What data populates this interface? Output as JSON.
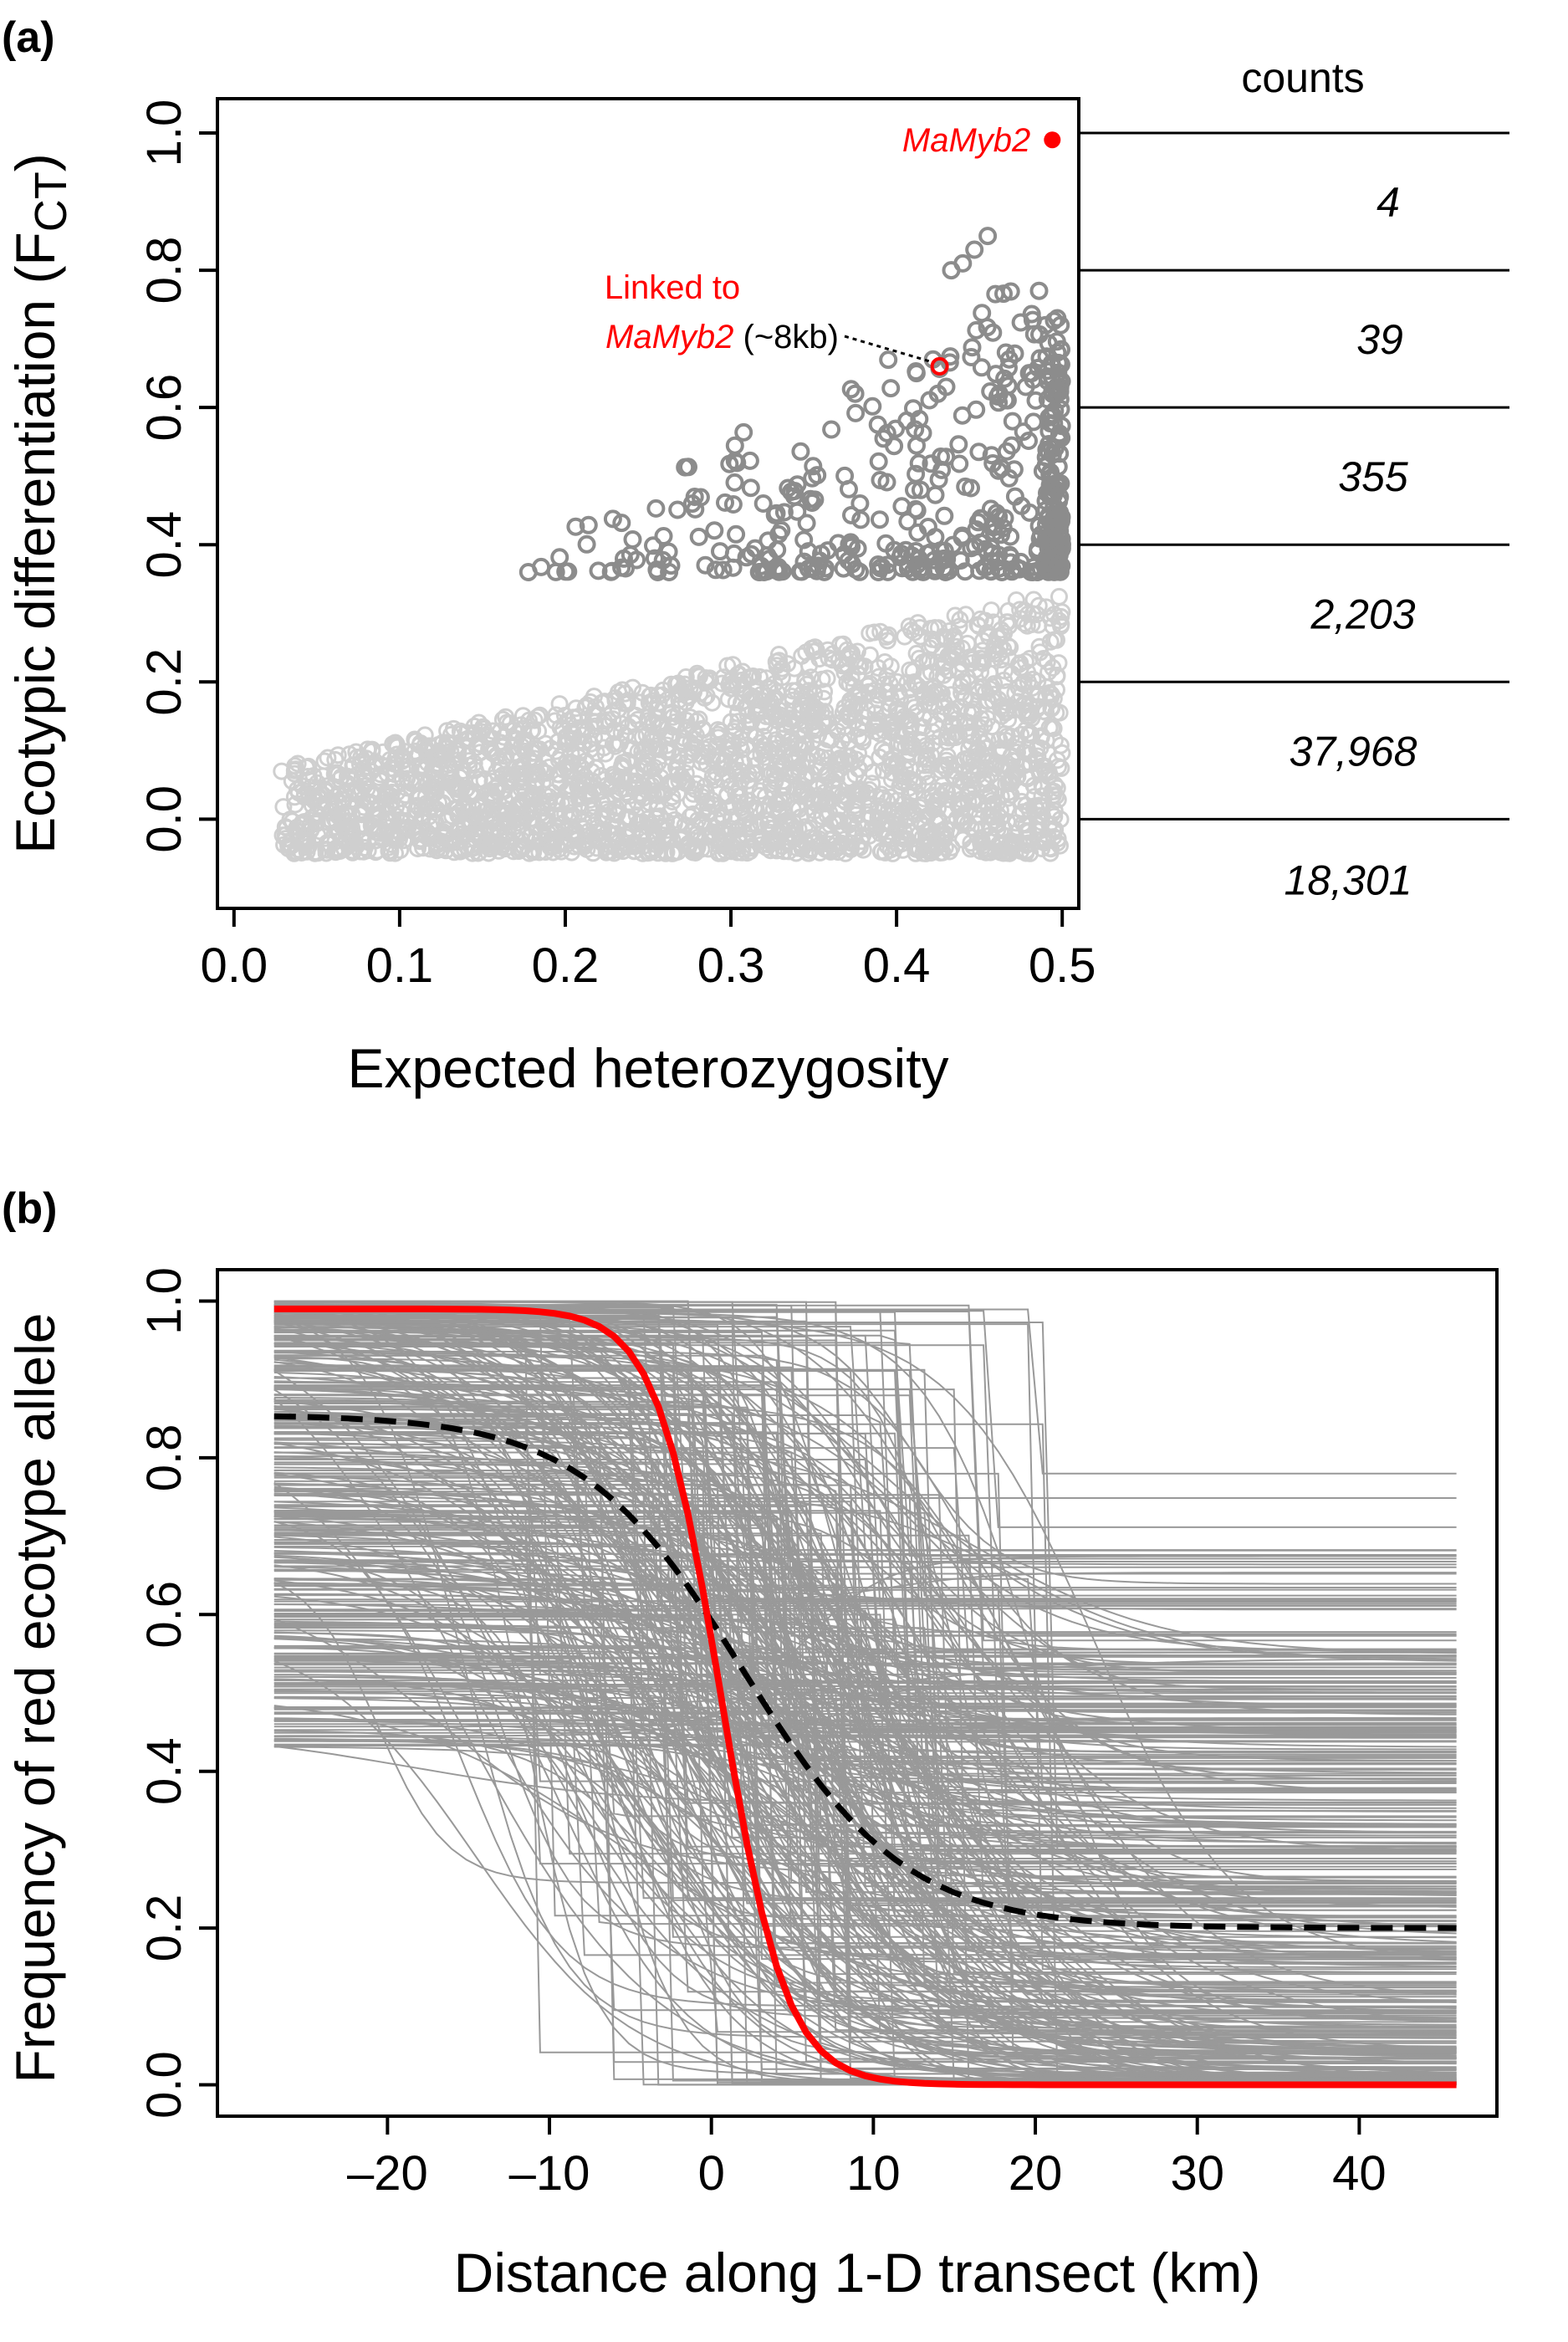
{
  "chart_data": [
    {
      "panel_label": "(a)",
      "type": "scatter",
      "xlabel": "Expected heterozygosity",
      "ylabel": "Ecotypic differentiation (F",
      "ylabel_subscript": "CT",
      "ylabel_close": ")",
      "xlim": [
        -0.01,
        0.51
      ],
      "ylim": [
        -0.13,
        1.05
      ],
      "xticks": [
        0.0,
        0.1,
        0.2,
        0.3,
        0.4,
        0.5
      ],
      "xtick_labels": [
        "0.0",
        "0.1",
        "0.2",
        "0.3",
        "0.4",
        "0.5"
      ],
      "yticks": [
        0.0,
        0.2,
        0.4,
        0.6,
        0.8,
        1.0
      ],
      "ytick_labels": [
        "0.0",
        "0.2",
        "0.4",
        "0.6",
        "0.8",
        "1.0"
      ],
      "grid": false,
      "colors": {
        "light_points": "#cfcfcf",
        "dark_points": "#8c8c8c",
        "highlight": "#ff0000"
      },
      "outlier_threshold": 0.35,
      "highlight_point": {
        "label": "MaMyb2",
        "x": 0.494,
        "y": 0.99
      },
      "linked_point": {
        "x": 0.426,
        "y": 0.66,
        "label_line1": "Linked to",
        "label_gene": "MaMyb2",
        "label_suffix": " (~8kb)"
      },
      "outlier_points": [
        [
          0.455,
          0.85
        ],
        [
          0.447,
          0.83
        ],
        [
          0.44,
          0.81
        ],
        [
          0.433,
          0.8
        ],
        [
          0.462,
          0.62
        ],
        [
          0.466,
          0.68
        ],
        [
          0.468,
          0.67
        ],
        [
          0.486,
          0.77
        ],
        [
          0.49,
          0.72
        ],
        [
          0.497,
          0.73
        ],
        [
          0.499,
          0.72
        ],
        [
          0.412,
          0.65
        ],
        [
          0.425,
          0.62
        ],
        [
          0.43,
          0.63
        ],
        [
          0.375,
          0.62
        ],
        [
          0.422,
          0.67
        ],
        [
          0.47,
          0.58
        ],
        [
          0.48,
          0.65
        ],
        [
          0.484,
          0.61
        ],
        [
          0.478,
          0.63
        ]
      ],
      "counts_header": "counts",
      "count_bins": [
        {
          "from": 0.8,
          "to": 1.0,
          "count": "4"
        },
        {
          "from": 0.6,
          "to": 0.8,
          "count": "39"
        },
        {
          "from": 0.4,
          "to": 0.6,
          "count": "355"
        },
        {
          "from": 0.2,
          "to": 0.4,
          "count": "2,203"
        },
        {
          "from": 0.0,
          "to": 0.2,
          "count": "37,968"
        },
        {
          "from": -0.13,
          "to": 0.0,
          "count": "18,301"
        }
      ],
      "count_bin_edges": [
        1.0,
        0.8,
        0.6,
        0.4,
        0.2,
        0.0
      ]
    },
    {
      "panel_label": "(b)",
      "type": "line",
      "xlabel": "Distance along 1-D transect (km)",
      "ylabel": "Frequency of red ecotype allele",
      "xlim": [
        -30.5,
        48.5
      ],
      "ylim": [
        -0.04,
        1.04
      ],
      "xrange_data": [
        -27,
        46
      ],
      "xticks": [
        -20,
        -10,
        0,
        10,
        20,
        30,
        40
      ],
      "xtick_labels": [
        "–20",
        "–10",
        "0",
        "10",
        "20",
        "30",
        "40"
      ],
      "yticks": [
        0.0,
        0.2,
        0.4,
        0.6,
        0.8,
        1.0
      ],
      "ytick_labels": [
        "0.0",
        "0.2",
        "0.4",
        "0.6",
        "0.8",
        "1.0"
      ],
      "grid": false,
      "series": [
        {
          "style": "red-solid",
          "color": "#ff0000",
          "left": 0.99,
          "right": 0.0,
          "center": 0.6,
          "width": 2.0
        },
        {
          "style": "black-dashed",
          "color": "#000000",
          "left": 0.855,
          "right": 0.2,
          "center": 2.0,
          "width": 5.0
        }
      ],
      "background_clines": {
        "count": 420,
        "color": "#999999"
      }
    }
  ]
}
